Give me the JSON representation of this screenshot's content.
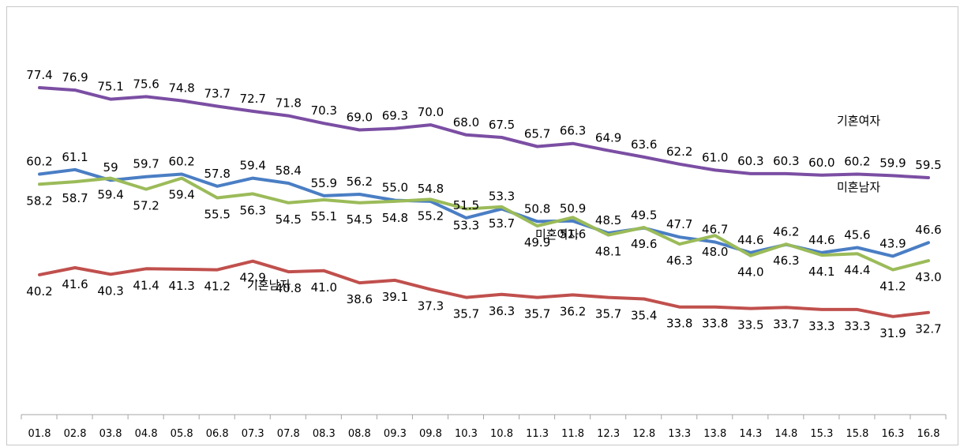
{
  "chart_data": {
    "type": "line",
    "title": "",
    "xlabel": "",
    "ylabel": "",
    "ylim": [
      0,
      90
    ],
    "grid": false,
    "legend": "none (series labeled inline)",
    "categories": [
      "01.8",
      "02.8",
      "03.8",
      "04.8",
      "05.8",
      "06.8",
      "07.3",
      "07.8",
      "08.3",
      "08.8",
      "09.3",
      "09.8",
      "10.3",
      "10.8",
      "11.3",
      "11.8",
      "12.3",
      "12.8",
      "13.3",
      "13.8",
      "14.3",
      "14.8",
      "15.3",
      "15.8",
      "16.3",
      "16.8"
    ],
    "series": [
      {
        "name": "기혼여자",
        "color": "#7b4ea3",
        "label_pos": "above",
        "values": [
          77.4,
          76.9,
          75.1,
          75.6,
          74.8,
          73.7,
          72.7,
          71.8,
          70.3,
          69.0,
          69.3,
          70.0,
          68.0,
          67.5,
          65.7,
          66.3,
          64.9,
          63.6,
          62.2,
          61.0,
          60.3,
          60.3,
          60.0,
          60.2,
          59.9,
          59.5
        ],
        "labels": [
          "77.4",
          "76.9",
          "75.1",
          "75.6",
          "74.8",
          "73.7",
          "72.7",
          "71.8",
          "70.3",
          "69.0",
          "69.3",
          "70.0",
          "68.0",
          "67.5",
          "65.7",
          "66.3",
          "64.9",
          "63.6",
          "62.2",
          "61.0",
          "60.3",
          "60.3",
          "60.0",
          "60.2",
          "59.9",
          "59.5"
        ]
      },
      {
        "name": "미혼남자",
        "color": "#4a7ec4",
        "label_pos": "above",
        "values": [
          60.2,
          61.1,
          59,
          59.7,
          60.2,
          57.8,
          59.4,
          58.4,
          55.9,
          56.2,
          55.0,
          54.8,
          51.5,
          53.3,
          50.8,
          50.9,
          48.5,
          49.5,
          47.7,
          46.7,
          44.6,
          46.2,
          44.6,
          45.6,
          43.9,
          46.6
        ],
        "labels": [
          "60.2",
          "61.1",
          "59",
          "59.7",
          "60.2",
          "57.8",
          "59.4",
          "58.4",
          "55.9",
          "56.2",
          "55.0",
          "54.8",
          "51.5",
          "53.3",
          "50.8",
          "50.9",
          "48.5",
          "49.5",
          "47.7",
          "46.7",
          "44.6",
          "46.2",
          "44.6",
          "45.6",
          "43.9",
          "46.6"
        ]
      },
      {
        "name": "미혼여자",
        "color": "#9bbb59",
        "label_pos": "below",
        "values": [
          58.2,
          58.7,
          59.4,
          57.2,
          59.4,
          55.5,
          56.3,
          54.5,
          55.1,
          54.5,
          54.8,
          55.2,
          53.3,
          53.7,
          49.9,
          51.6,
          48.1,
          49.6,
          46.3,
          48.0,
          44.0,
          46.3,
          44.1,
          44.4,
          41.2,
          43.0
        ],
        "labels": [
          "58.2",
          "58.7",
          "59.4",
          "57.2",
          "59.4",
          "55.5",
          "56.3",
          "54.5",
          "55.1",
          "54.5",
          "54.8",
          "55.2",
          "53.3",
          "53.7",
          "49.9",
          "51.6",
          "48.1",
          "49.6",
          "46.3",
          "48.0",
          "44.0",
          "46.3",
          "44.1",
          "44.4",
          "41.2",
          "43.0"
        ]
      },
      {
        "name": "기혼남자",
        "color": "#c0504d",
        "label_pos": "below",
        "values": [
          40.2,
          41.6,
          40.3,
          41.4,
          41.3,
          41.2,
          42.9,
          40.8,
          41.0,
          38.6,
          39.1,
          37.3,
          35.7,
          36.3,
          35.7,
          36.2,
          35.7,
          35.4,
          33.8,
          33.8,
          33.5,
          33.7,
          33.3,
          33.3,
          31.9,
          32.7
        ],
        "labels": [
          "40.2",
          "41.6",
          "40.3",
          "41.4",
          "41.3",
          "41.2",
          "42.9",
          "40.8",
          "41.0",
          "38.6",
          "39.1",
          "37.3",
          "35.7",
          "36.3",
          "35.7",
          "36.2",
          "35.7",
          "35.4",
          "33.8",
          "33.8",
          "33.5",
          "33.7",
          "33.3",
          "33.3",
          "31.9",
          "32.7"
        ]
      }
    ]
  }
}
